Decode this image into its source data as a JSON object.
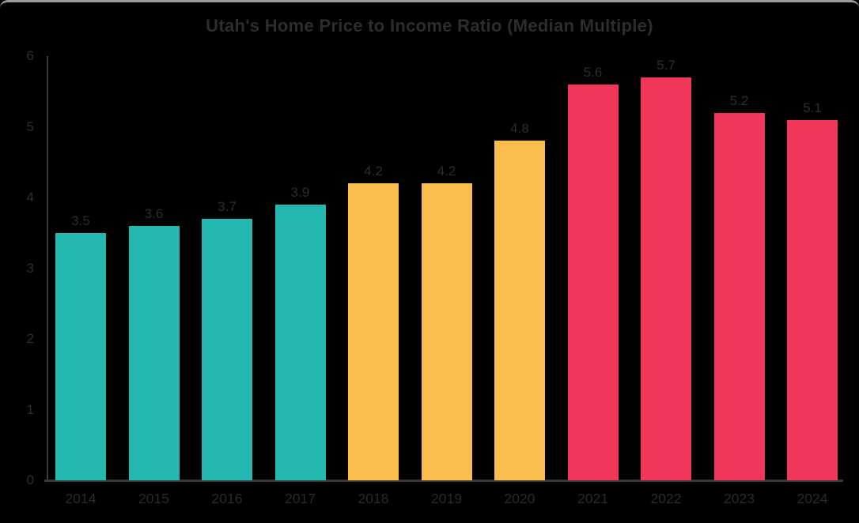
{
  "window": {
    "background": "#000000",
    "top_border_color": "#9c9c9c"
  },
  "text_color": "#2d2d2d",
  "axis_color": "#3a3a3a",
  "palette": {
    "teal": "#23b9b1",
    "orange": "#fabc4d",
    "red": "#f0375a"
  },
  "chart_data": {
    "type": "bar",
    "title": "Utah's Home Price to Income Ratio (Median Multiple)",
    "categories": [
      "2014",
      "2015",
      "2016",
      "2017",
      "2018",
      "2019",
      "2020",
      "2021",
      "2022",
      "2023",
      "2024"
    ],
    "values": [
      3.5,
      3.6,
      3.7,
      3.9,
      4.2,
      4.2,
      4.8,
      5.6,
      5.7,
      5.2,
      5.1
    ],
    "data_labels": [
      "3.5",
      "3.6",
      "3.7",
      "3.9",
      "4.2",
      "4.2",
      "4.8",
      "5.6",
      "5.7",
      "5.2",
      "5.1"
    ],
    "bar_color_keys": [
      "teal",
      "teal",
      "teal",
      "teal",
      "orange",
      "orange",
      "orange",
      "red",
      "red",
      "red",
      "red"
    ],
    "xlabel": "",
    "ylabel": "",
    "ylim": [
      0,
      6
    ],
    "yticks": [
      0,
      1,
      2,
      3,
      4,
      5,
      6
    ],
    "grid": false,
    "legend": "none"
  }
}
